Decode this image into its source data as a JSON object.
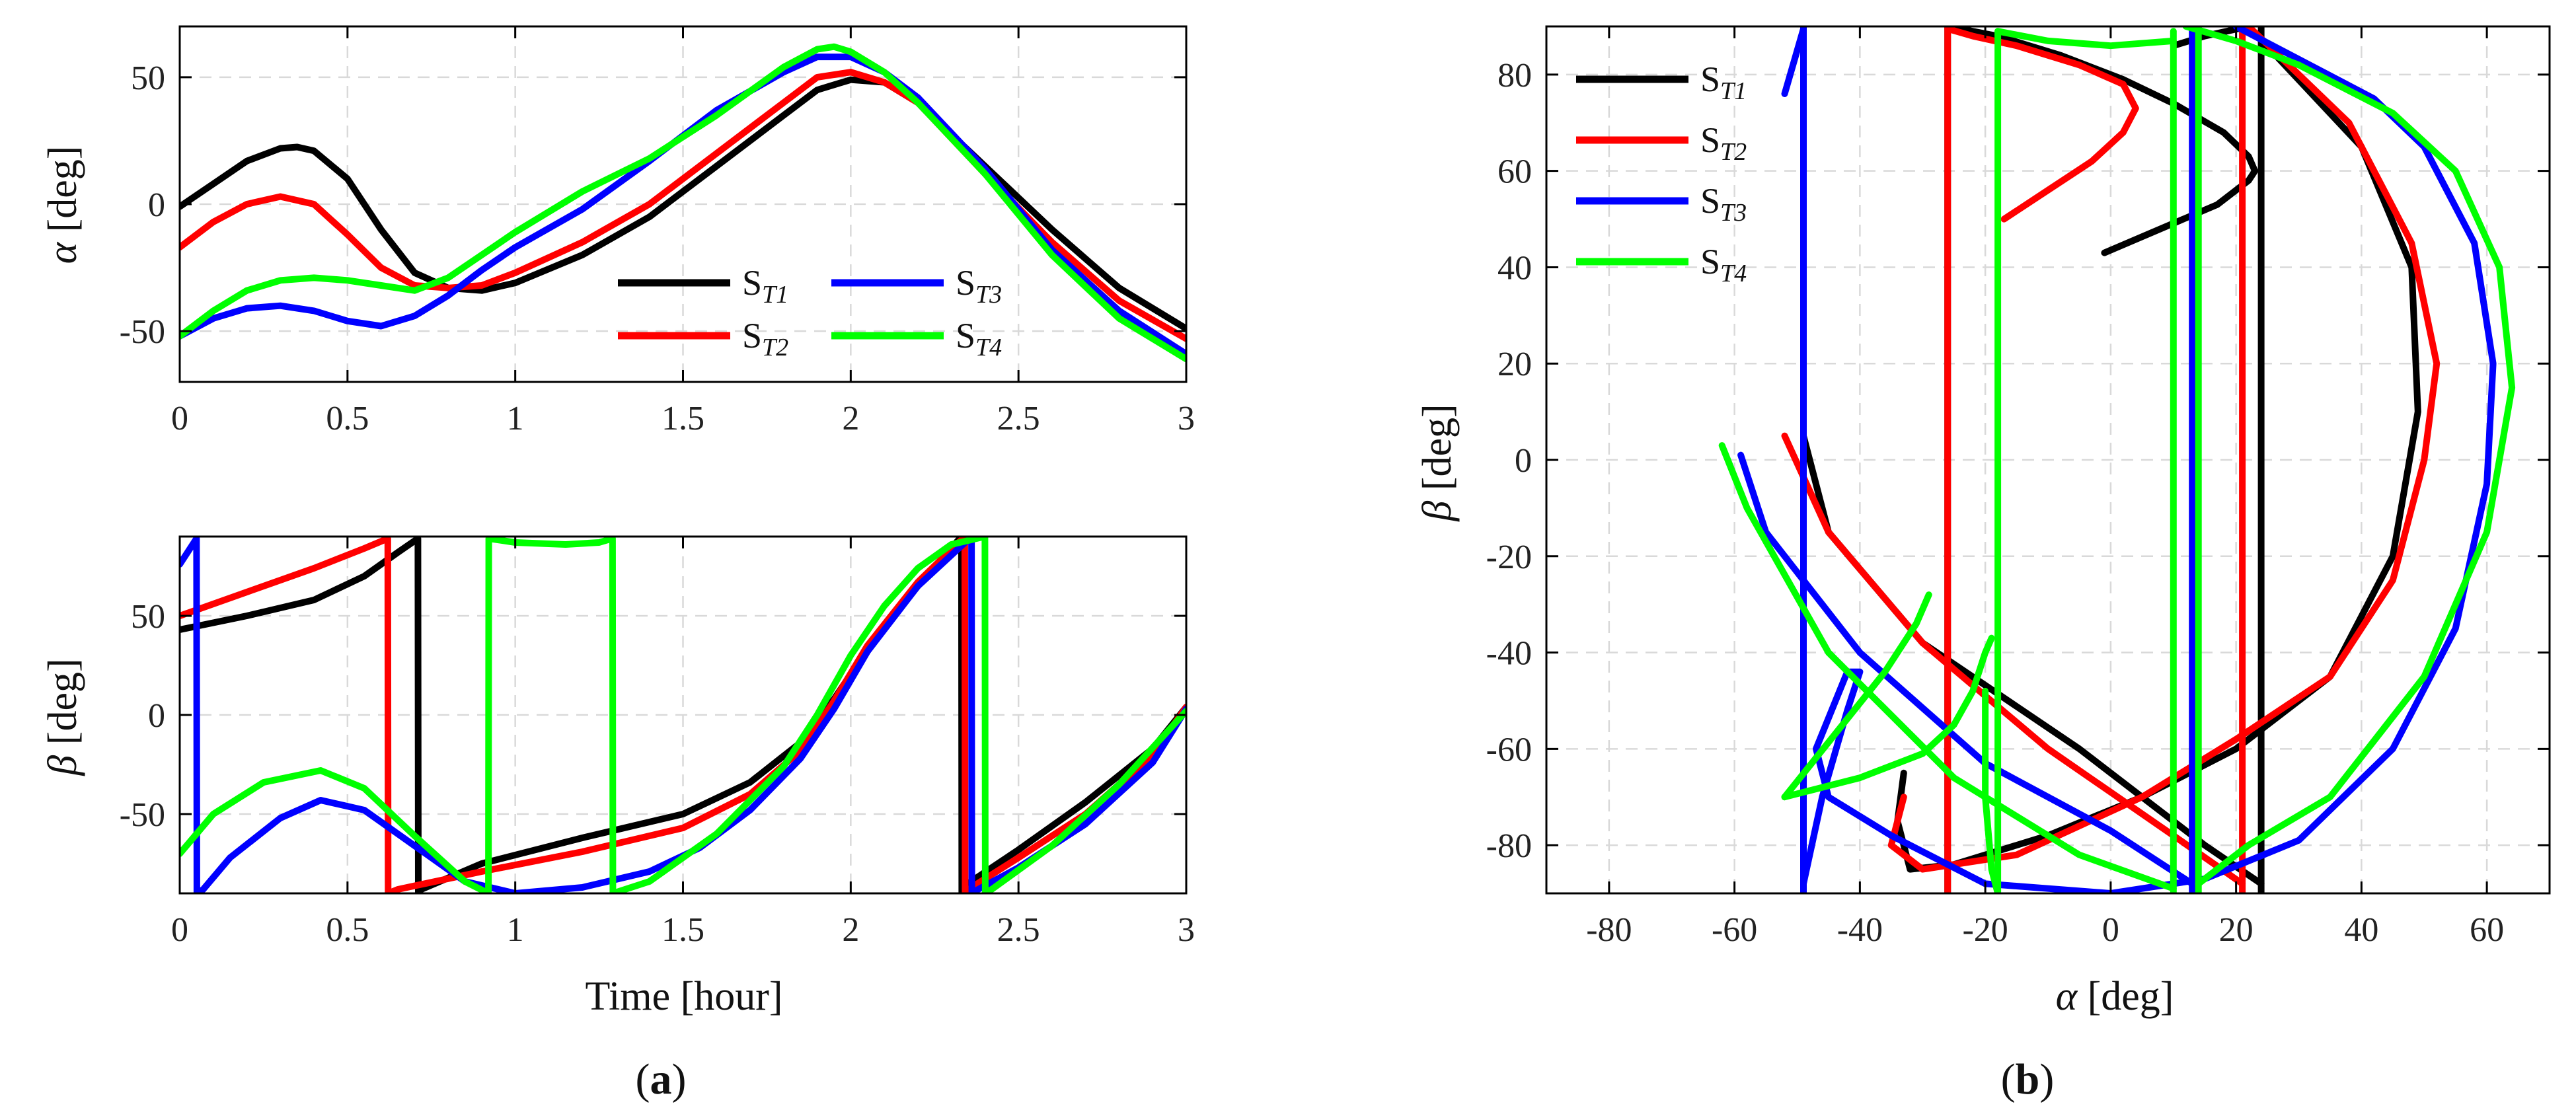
{
  "panel_captions": {
    "a": "a",
    "b": "b"
  },
  "series_style": [
    {
      "key": "ST1",
      "name": "S",
      "sub": "T1",
      "color": "#000000"
    },
    {
      "key": "ST2",
      "name": "S",
      "sub": "T2",
      "color": "#ff0000"
    },
    {
      "key": "ST3",
      "name": "S",
      "sub": "T3",
      "color": "#0000ff"
    },
    {
      "key": "ST4",
      "name": "S",
      "sub": "T4",
      "color": "#00ff00"
    }
  ],
  "chart_data": [
    {
      "id": "alpha-vs-time",
      "type": "line",
      "panel": "a",
      "xlabel": "",
      "ylabel_symbol": "α",
      "ylabel_unit": "[deg]",
      "xlim": [
        0,
        3
      ],
      "ylim": [
        -70,
        70
      ],
      "xticks": [
        0,
        0.5,
        1,
        1.5,
        2,
        2.5,
        3
      ],
      "xtick_labels": [
        "0",
        "0.5",
        "1",
        "1.5",
        "2",
        "2.5",
        "3"
      ],
      "yticks": [
        -50,
        0,
        50
      ],
      "ytick_labels": [
        "-50",
        "0",
        "50"
      ],
      "legend": {
        "columns": 2,
        "placement": "inside-lower-middle"
      },
      "series": [
        {
          "key": "ST1",
          "x": [
            0,
            0.1,
            0.2,
            0.3,
            0.35,
            0.4,
            0.5,
            0.6,
            0.7,
            0.8,
            0.9,
            1.0,
            1.2,
            1.4,
            1.6,
            1.8,
            1.9,
            2.0,
            2.1,
            2.2,
            2.4,
            2.6,
            2.8,
            3.0
          ],
          "y": [
            -1,
            8,
            17,
            22,
            22.5,
            21,
            10,
            -10,
            -27,
            -33,
            -34,
            -31,
            -20,
            -5,
            15,
            35,
            45,
            49,
            48,
            40,
            15,
            -10,
            -33,
            -49
          ]
        },
        {
          "key": "ST2",
          "x": [
            0,
            0.1,
            0.2,
            0.3,
            0.4,
            0.5,
            0.6,
            0.7,
            0.8,
            0.9,
            1.0,
            1.2,
            1.4,
            1.6,
            1.8,
            1.9,
            2.0,
            2.1,
            2.2,
            2.4,
            2.6,
            2.8,
            3.0
          ],
          "y": [
            -17,
            -7,
            0,
            3,
            0,
            -12,
            -25,
            -32,
            -33,
            -32,
            -27,
            -15,
            0,
            20,
            40,
            50,
            52,
            48,
            40,
            12,
            -15,
            -38,
            -53
          ]
        },
        {
          "key": "ST3",
          "x": [
            0,
            0.1,
            0.2,
            0.3,
            0.4,
            0.5,
            0.6,
            0.7,
            0.8,
            0.9,
            1.0,
            1.2,
            1.4,
            1.6,
            1.8,
            1.9,
            2.0,
            2.1,
            2.2,
            2.4,
            2.6,
            2.8,
            3.0
          ],
          "y": [
            -52,
            -45,
            -41,
            -40,
            -42,
            -46,
            -48,
            -44,
            -36,
            -26,
            -17,
            -2,
            17,
            37,
            52,
            58,
            58,
            52,
            42,
            14,
            -18,
            -42,
            -59
          ]
        },
        {
          "key": "ST4",
          "x": [
            0,
            0.1,
            0.2,
            0.3,
            0.4,
            0.5,
            0.6,
            0.7,
            0.8,
            0.9,
            1.0,
            1.2,
            1.4,
            1.6,
            1.8,
            1.9,
            1.95,
            2.0,
            2.1,
            2.2,
            2.4,
            2.6,
            2.8,
            3.0
          ],
          "y": [
            -52,
            -42,
            -34,
            -30,
            -29,
            -30,
            -32,
            -34,
            -29,
            -20,
            -11,
            5,
            18,
            35,
            54,
            61,
            62,
            60,
            52,
            40,
            12,
            -20,
            -45,
            -61
          ]
        }
      ]
    },
    {
      "id": "beta-vs-time",
      "type": "line",
      "panel": "a",
      "xlabel": "Time [hour]",
      "ylabel_symbol": "β",
      "ylabel_unit": "[deg]",
      "xlim": [
        0,
        3
      ],
      "ylim": [
        -90,
        90
      ],
      "xticks": [
        0,
        0.5,
        1,
        1.5,
        2,
        2.5,
        3
      ],
      "xtick_labels": [
        "0",
        "0.5",
        "1",
        "1.5",
        "2",
        "2.5",
        "3"
      ],
      "yticks": [
        -50,
        0,
        50
      ],
      "ytick_labels": [
        "-50",
        "0",
        "50"
      ],
      "series": [
        {
          "key": "ST1",
          "x": [
            0,
            0.2,
            0.4,
            0.55,
            0.65,
            0.71,
            0.711,
            0.72,
            0.9,
            1.2,
            1.5,
            1.7,
            1.85,
            1.95,
            2.05,
            2.2,
            2.33,
            2.331,
            2.35,
            2.5,
            2.7,
            2.9,
            3.0
          ],
          "y": [
            43,
            50,
            58,
            70,
            82,
            89,
            -90,
            -88,
            -75,
            -62,
            -50,
            -34,
            -14,
            8,
            33,
            65,
            90,
            -90,
            -85,
            -68,
            -44,
            -17,
            4
          ]
        },
        {
          "key": "ST2",
          "x": [
            0,
            0.2,
            0.4,
            0.55,
            0.62,
            0.621,
            0.65,
            0.9,
            1.2,
            1.5,
            1.7,
            1.85,
            1.95,
            2.05,
            2.2,
            2.34,
            2.341,
            2.36,
            2.5,
            2.7,
            2.9,
            3.0
          ],
          "y": [
            50,
            62,
            74,
            84,
            89,
            -90,
            -88,
            -79,
            -69,
            -57,
            -40,
            -18,
            7,
            35,
            67,
            90,
            -90,
            -87,
            -72,
            -50,
            -20,
            4
          ]
        },
        {
          "key": "ST3",
          "x": [
            0,
            0.05,
            0.051,
            0.07,
            0.15,
            0.3,
            0.42,
            0.55,
            0.7,
            0.85,
            1.0,
            1.2,
            1.4,
            1.55,
            1.7,
            1.85,
            1.95,
            2.05,
            2.2,
            2.36,
            2.361,
            2.38,
            2.5,
            2.7,
            2.9,
            3.0
          ],
          "y": [
            76,
            89,
            -90,
            -88,
            -72,
            -52,
            -43,
            -48,
            -66,
            -84,
            -90,
            -87,
            -79,
            -67,
            -48,
            -22,
            3,
            32,
            65,
            90,
            -90,
            -88,
            -77,
            -55,
            -24,
            3
          ]
        },
        {
          "key": "ST4",
          "x": [
            0,
            0.1,
            0.25,
            0.42,
            0.55,
            0.7,
            0.85,
            0.92,
            0.921,
            1.0,
            1.15,
            1.25,
            1.29,
            1.291,
            1.4,
            1.6,
            1.8,
            1.9,
            2.0,
            2.1,
            2.2,
            2.3,
            2.4,
            2.401,
            2.42,
            2.6,
            2.8,
            3.0
          ],
          "y": [
            -70,
            -50,
            -34,
            -28,
            -37,
            -61,
            -84,
            -90,
            89,
            87,
            86,
            87,
            89,
            -90,
            -84,
            -60,
            -26,
            0,
            30,
            55,
            74,
            86,
            90,
            -90,
            -88,
            -66,
            -35,
            2
          ]
        }
      ]
    },
    {
      "id": "beta-vs-alpha",
      "type": "line",
      "panel": "b",
      "xlabel_symbol": "α",
      "xlabel_unit": "[deg]",
      "ylabel_symbol": "β",
      "ylabel_unit": "[deg]",
      "xlim": [
        -90,
        70
      ],
      "ylim": [
        -90,
        90
      ],
      "xticks": [
        -80,
        -60,
        -40,
        -20,
        0,
        20,
        40,
        60
      ],
      "xtick_labels": [
        "-80",
        "-60",
        "-40",
        "-20",
        "0",
        "20",
        "40",
        "60"
      ],
      "yticks": [
        -80,
        -60,
        -40,
        -20,
        0,
        20,
        40,
        60,
        80
      ],
      "ytick_labels": [
        "-80",
        "-60",
        "-40",
        "-20",
        "0",
        "20",
        "40",
        "60",
        "80"
      ],
      "legend": {
        "columns": 1,
        "placement": "top-left"
      },
      "series": [
        {
          "key": "ST1",
          "segments": [
            {
              "x": [
                -1,
                8,
                17,
                22,
                23,
                22,
                18,
                10,
                2,
                -8,
                -18,
                -24,
                -25.5
              ],
              "y": [
                43,
                48,
                53,
                58,
                60,
                63,
                68,
                74,
                79,
                84,
                88,
                89.5,
                90
              ]
            },
            {
              "x": [
                -26,
                -26
              ],
              "y": [
                90,
                -90
              ]
            },
            {
              "x": [
                -33,
                -34,
                -32,
                -25,
                -10,
                5,
                20,
                35,
                45,
                49,
                48,
                40,
                22,
                15,
                10
              ],
              "y": [
                -65,
                -75,
                -85,
                -84,
                -78,
                -70,
                -60,
                -45,
                -20,
                10,
                40,
                65,
                90,
                88,
                86
              ]
            },
            {
              "x": [
                24,
                24
              ],
              "y": [
                90,
                -90
              ]
            },
            {
              "x": [
                24,
                15,
                -5,
                -30,
                -45,
                -49
              ],
              "y": [
                -88,
                -80,
                -60,
                -38,
                -15,
                5
              ]
            }
          ]
        },
        {
          "key": "ST2",
          "segments": [
            {
              "x": [
                -17,
                -10,
                -3,
                2,
                4,
                2,
                -5,
                -15,
                -22,
                -26
              ],
              "y": [
                50,
                56,
                62,
                68,
                73,
                78,
                82,
                86,
                88,
                89.5
              ]
            },
            {
              "x": [
                -26,
                -26
              ],
              "y": [
                90,
                -90
              ]
            },
            {
              "x": [
                -33,
                -35,
                -30,
                -15,
                5,
                20,
                35,
                45,
                50,
                52,
                48,
                38,
                22
              ],
              "y": [
                -70,
                -80,
                -85,
                -82,
                -70,
                -58,
                -45,
                -25,
                0,
                20,
                45,
                70,
                90
              ]
            },
            {
              "x": [
                21,
                21
              ],
              "y": [
                90,
                -90
              ]
            },
            {
              "x": [
                21,
                10,
                -10,
                -30,
                -45,
                -52
              ],
              "y": [
                -88,
                -78,
                -60,
                -38,
                -15,
                5
              ]
            }
          ]
        },
        {
          "key": "ST3",
          "segments": [
            {
              "x": [
                -52,
                -50,
                -49
              ],
              "y": [
                76,
                85,
                89.5
              ]
            },
            {
              "x": [
                -49,
                -49
              ],
              "y": [
                90,
                -90
              ]
            },
            {
              "x": [
                -49,
                -46,
                -42,
                -40,
                -42,
                -47,
                -45,
                -35,
                -20,
                0,
                15,
                30,
                45,
                55,
                60,
                61,
                58,
                50,
                42,
                20
              ],
              "y": [
                -88,
                -70,
                -52,
                -44,
                -44,
                -60,
                -70,
                -78,
                -88,
                -90,
                -87,
                -79,
                -60,
                -35,
                -5,
                20,
                45,
                65,
                75,
                90
              ]
            },
            {
              "x": [
                13,
                13
              ],
              "y": [
                90,
                -90
              ]
            },
            {
              "x": [
                13,
                0,
                -20,
                -40,
                -55,
                -59
              ],
              "y": [
                -88,
                -77,
                -63,
                -40,
                -15,
                1
              ]
            }
          ]
        },
        {
          "key": "ST4",
          "segments": [
            {
              "x": [
                -52,
                -44,
                -36,
                -31,
                -29
              ],
              "y": [
                -70,
                -57,
                -44,
                -34,
                -28
              ]
            },
            {
              "x": [
                -52,
                -40,
                -30,
                -25,
                -22,
                -20,
                -19
              ],
              "y": [
                -70,
                -66,
                -61,
                -55,
                -48,
                -40,
                -37
              ]
            },
            {
              "x": [
                -20,
                -20,
                -19,
                -18
              ],
              "y": [
                -48,
                -70,
                -85,
                -90
              ]
            },
            {
              "x": [
                -18,
                -18
              ],
              "y": [
                -90,
                89
              ]
            },
            {
              "x": [
                -18,
                -10,
                0,
                10
              ],
              "y": [
                89,
                87,
                86,
                87
              ]
            },
            {
              "x": [
                10,
                10
              ],
              "y": [
                89,
                -90
              ]
            },
            {
              "x": [
                14,
                14
              ],
              "y": [
                90,
                -90
              ]
            },
            {
              "x": [
                14,
                22,
                35,
                50,
                60,
                64,
                62,
                55,
                45,
                30,
                20,
                12
              ],
              "y": [
                -88,
                -80,
                -70,
                -45,
                -15,
                15,
                40,
                60,
                72,
                82,
                87,
                90
              ]
            },
            {
              "x": [
                10,
                -5,
                -25,
                -45,
                -58,
                -62
              ],
              "y": [
                -89,
                -82,
                -66,
                -40,
                -10,
                3
              ]
            }
          ]
        }
      ]
    }
  ]
}
